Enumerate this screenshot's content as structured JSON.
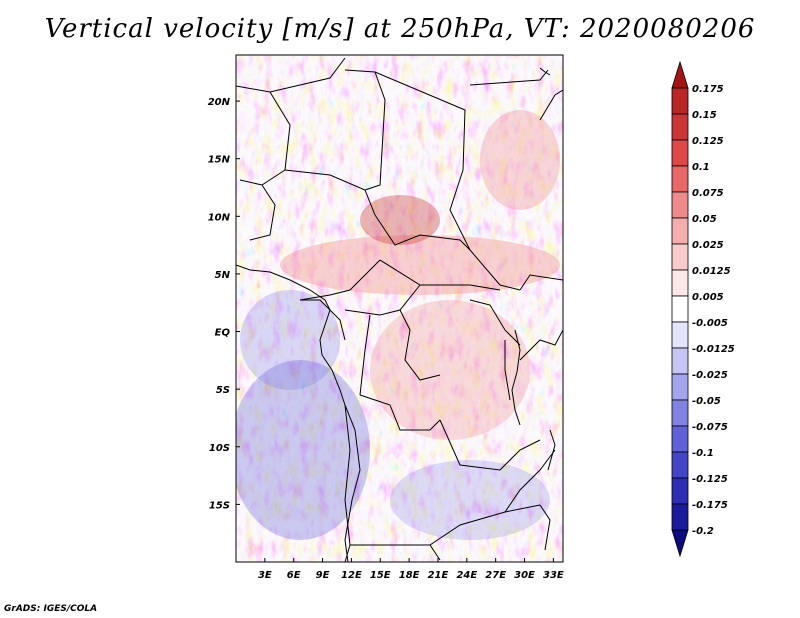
{
  "title": "Vertical velocity [m/s] at 250hPa, VT: 2020080206",
  "credit": "GrADS: IGES/COLA",
  "map": {
    "lon_range": [
      0,
      34
    ],
    "lat_range": [
      -20,
      24
    ],
    "lat_labels": [
      {
        "lat": 20,
        "text": "20N"
      },
      {
        "lat": 15,
        "text": "15N"
      },
      {
        "lat": 10,
        "text": "10N"
      },
      {
        "lat": 5,
        "text": "5N"
      },
      {
        "lat": 0,
        "text": "EQ"
      },
      {
        "lat": -5,
        "text": "5S"
      },
      {
        "lat": -10,
        "text": "10S"
      },
      {
        "lat": -15,
        "text": "15S"
      }
    ],
    "lon_labels": [
      {
        "lon": 3,
        "text": "3E"
      },
      {
        "lon": 6,
        "text": "6E"
      },
      {
        "lon": 9,
        "text": "9E"
      },
      {
        "lon": 12,
        "text": "12E"
      },
      {
        "lon": 15,
        "text": "15E"
      },
      {
        "lon": 18,
        "text": "18E"
      },
      {
        "lon": 21,
        "text": "21E"
      },
      {
        "lon": 24,
        "text": "24E"
      },
      {
        "lon": 27,
        "text": "27E"
      },
      {
        "lon": 30,
        "text": "30E"
      },
      {
        "lon": 33,
        "text": "33E"
      }
    ]
  },
  "colorbar": {
    "labels": [
      "0.175",
      "0.15",
      "0.125",
      "0.1",
      "0.075",
      "0.05",
      "0.025",
      "0.0125",
      "0.005",
      "-0.005",
      "-0.0125",
      "-0.025",
      "-0.05",
      "-0.075",
      "-0.1",
      "-0.125",
      "-0.175",
      "-0.2"
    ],
    "colors": [
      "#a31515",
      "#b82626",
      "#cc3535",
      "#de4848",
      "#e86868",
      "#ee8a8a",
      "#f4aeae",
      "#f8cccc",
      "#fce8e8",
      "#ffffff",
      "#e4e4fc",
      "#c6c6f4",
      "#a4a4ee",
      "#8282e4",
      "#6262d8",
      "#4444c8",
      "#2c2cb4",
      "#1a1a9c",
      "#0c0c80"
    ]
  }
}
